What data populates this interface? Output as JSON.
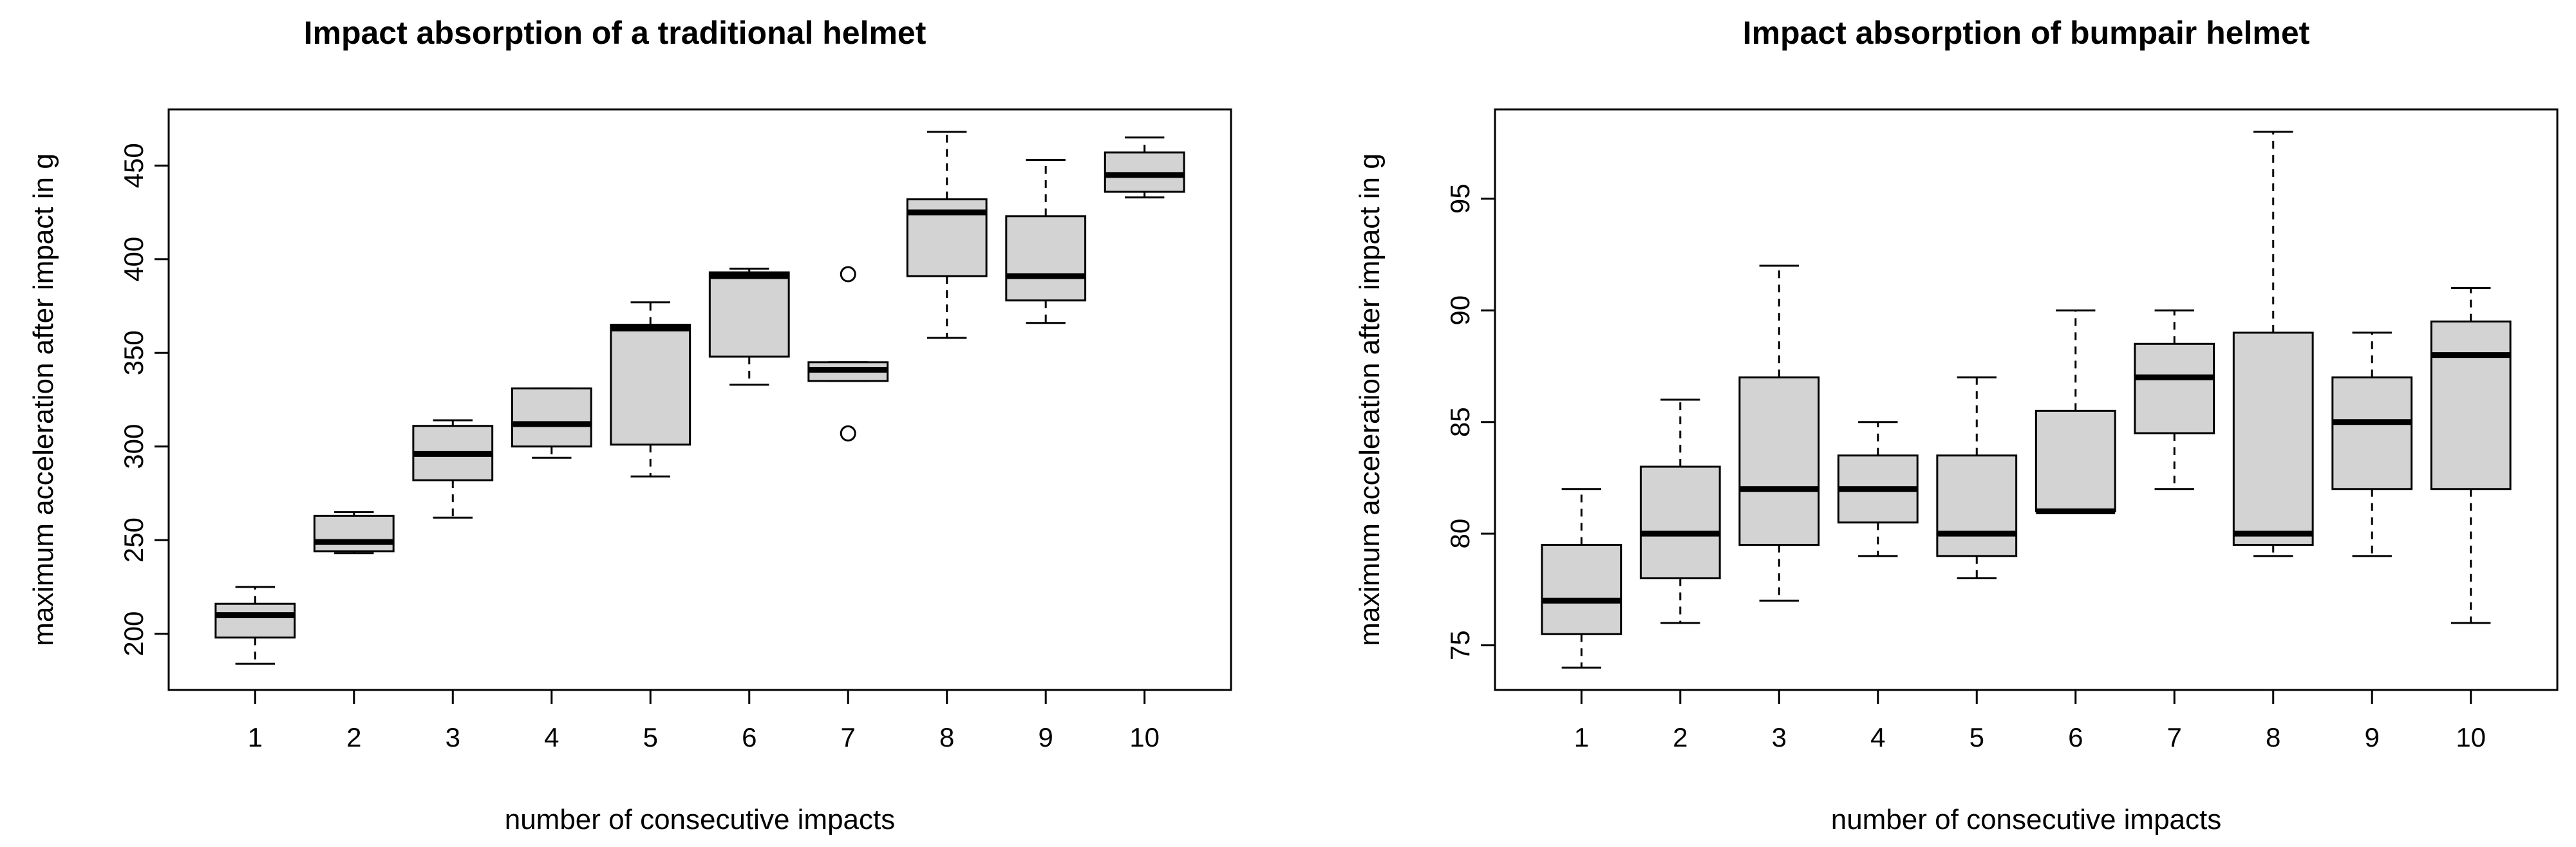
{
  "chart_data": [
    {
      "type": "box",
      "title": "Impact absorption of a traditional helmet",
      "xlabel": "number of consecutive impacts",
      "ylabel": "maximum acceleration after impact in g",
      "categories": [
        "1",
        "2",
        "3",
        "4",
        "5",
        "6",
        "7",
        "8",
        "9",
        "10"
      ],
      "ylim": [
        170,
        480
      ],
      "yticks": [
        200,
        250,
        300,
        350,
        400,
        450
      ],
      "ytick_labels": [
        "200",
        "250",
        "300",
        "350",
        "400",
        "450"
      ],
      "boxes": [
        {
          "whisker_low": 184,
          "q1": 198,
          "median": 210,
          "q3": 216,
          "whisker_high": 225,
          "outliers": []
        },
        {
          "whisker_low": 243,
          "q1": 244,
          "median": 249,
          "q3": 263,
          "whisker_high": 265,
          "outliers": []
        },
        {
          "whisker_low": 262,
          "q1": 282,
          "median": 296,
          "q3": 311,
          "whisker_high": 314,
          "outliers": []
        },
        {
          "whisker_low": 294,
          "q1": 300,
          "median": 312,
          "q3": 331,
          "whisker_high": 331,
          "outliers": []
        },
        {
          "whisker_low": 284,
          "q1": 301,
          "median": 363,
          "q3": 365,
          "whisker_high": 377,
          "outliers": []
        },
        {
          "whisker_low": 333,
          "q1": 348,
          "median": 391,
          "q3": 393,
          "whisker_high": 395,
          "outliers": []
        },
        {
          "whisker_low": 335,
          "q1": 335,
          "median": 341,
          "q3": 345,
          "whisker_high": 345,
          "outliers": [
            392,
            307
          ]
        },
        {
          "whisker_low": 358,
          "q1": 391,
          "median": 425,
          "q3": 432,
          "whisker_high": 468,
          "outliers": []
        },
        {
          "whisker_low": 366,
          "q1": 378,
          "median": 391,
          "q3": 423,
          "whisker_high": 453,
          "outliers": []
        },
        {
          "whisker_low": 433,
          "q1": 436,
          "median": 445,
          "q3": 457,
          "whisker_high": 465,
          "outliers": []
        }
      ],
      "box_fill": "#d3d3d3"
    },
    {
      "type": "box",
      "title": "Impact absorption of bumpair helmet",
      "xlabel": "number of consecutive impacts",
      "ylabel": "maximum acceleration after impact in g",
      "categories": [
        "1",
        "2",
        "3",
        "4",
        "5",
        "6",
        "7",
        "8",
        "9",
        "10"
      ],
      "ylim": [
        73,
        99
      ],
      "yticks": [
        75,
        80,
        85,
        90,
        95
      ],
      "ytick_labels": [
        "75",
        "80",
        "85",
        "90",
        "95"
      ],
      "boxes": [
        {
          "whisker_low": 74,
          "q1": 75.5,
          "median": 77,
          "q3": 79.5,
          "whisker_high": 82,
          "outliers": []
        },
        {
          "whisker_low": 76,
          "q1": 78,
          "median": 80,
          "q3": 83,
          "whisker_high": 86,
          "outliers": []
        },
        {
          "whisker_low": 77,
          "q1": 79.5,
          "median": 82,
          "q3": 87,
          "whisker_high": 92,
          "outliers": []
        },
        {
          "whisker_low": 79,
          "q1": 80.5,
          "median": 82,
          "q3": 83.5,
          "whisker_high": 85,
          "outliers": []
        },
        {
          "whisker_low": 78,
          "q1": 79,
          "median": 80,
          "q3": 83.5,
          "whisker_high": 87,
          "outliers": []
        },
        {
          "whisker_low": 81,
          "q1": 81,
          "median": 81,
          "q3": 85.5,
          "whisker_high": 90,
          "outliers": []
        },
        {
          "whisker_low": 82,
          "q1": 84.5,
          "median": 87,
          "q3": 88.5,
          "whisker_high": 90,
          "outliers": []
        },
        {
          "whisker_low": 79,
          "q1": 79.5,
          "median": 80,
          "q3": 89,
          "whisker_high": 98,
          "outliers": []
        },
        {
          "whisker_low": 79,
          "q1": 82,
          "median": 85,
          "q3": 87,
          "whisker_high": 89,
          "outliers": []
        },
        {
          "whisker_low": 76,
          "q1": 82,
          "median": 88,
          "q3": 89.5,
          "whisker_high": 91,
          "outliers": []
        }
      ],
      "box_fill": "#d3d3d3"
    }
  ]
}
